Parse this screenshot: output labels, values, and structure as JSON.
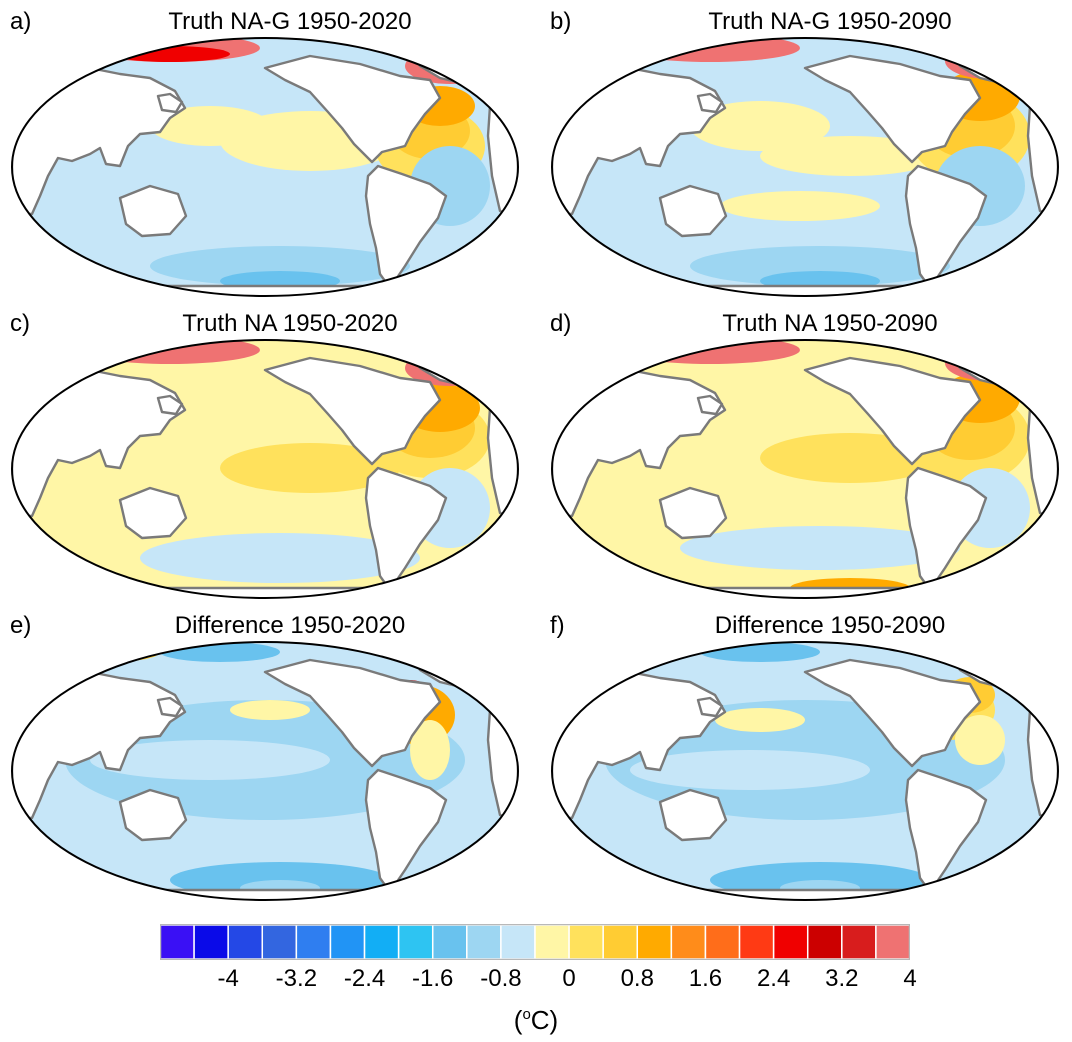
{
  "panels": [
    {
      "letter": "a)",
      "title": "Truth NA-G 1950-2020"
    },
    {
      "letter": "b)",
      "title": "Truth NA-G 1950-2090"
    },
    {
      "letter": "c)",
      "title": "Truth NA 1950-2020"
    },
    {
      "letter": "d)",
      "title": "Truth NA 1950-2090"
    },
    {
      "letter": "e)",
      "title": "Difference 1950-2020"
    },
    {
      "letter": "f)",
      "title": "Difference 1950-2090"
    }
  ],
  "colorbar": {
    "colors": [
      "#3a10f5",
      "#0a0ae8",
      "#2448e6",
      "#3366e0",
      "#2f7ef0",
      "#2194f5",
      "#12aef5",
      "#2ec4f2",
      "#69c2ee",
      "#9dd6f2",
      "#c6e6f8",
      "#fff6a6",
      "#ffe15c",
      "#ffcc33",
      "#ffaa00",
      "#ff8c1a",
      "#ff6d1a",
      "#ff3a14",
      "#f00000",
      "#cc0000",
      "#d81d1d",
      "#ef7272"
    ],
    "ticks": [
      "-4",
      "-3.2",
      "-2.4",
      "-1.6",
      "-0.8",
      "0",
      "0.8",
      "1.6",
      "2.4",
      "3.2",
      "4"
    ],
    "unit_prefix": "(",
    "unit_sup": "o",
    "unit_suffix": "C)"
  },
  "colors": {
    "land": "#ffffff",
    "coast": "#7a7a7a",
    "neutral_cool": "#c6e6f8",
    "cool": "#9dd6f2",
    "cooler": "#69c2ee",
    "warm": "#fff6a6",
    "warmer": "#ffe15c",
    "hot": "#ffcc33",
    "hotter": "#ffaa00",
    "red": "#f00000",
    "pink": "#ef7272"
  }
}
